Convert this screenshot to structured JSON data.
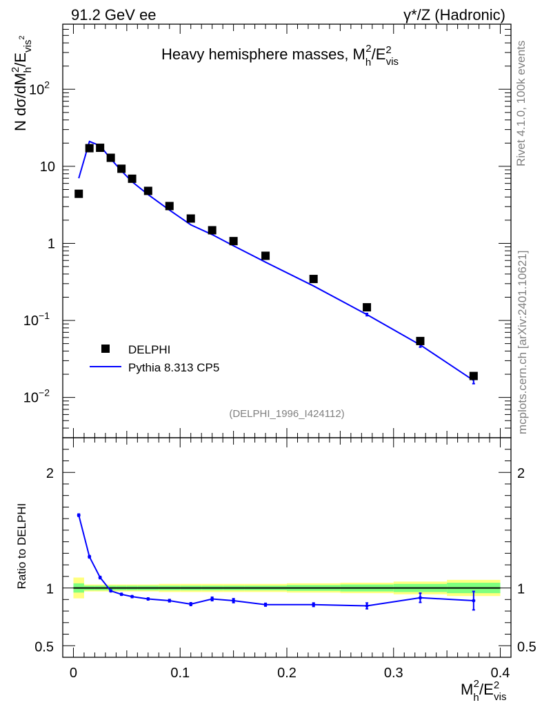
{
  "header": {
    "left": "91.2 GeV ee",
    "right": "γ*/Z (Hadronic)"
  },
  "side_labels": {
    "rivet": "Rivet 4.1.0,  100k events",
    "mcplots": "mcplots.cern.ch [arXiv:2401.10621]"
  },
  "chart_data": {
    "type": "line",
    "title": "Heavy hemisphere masses, M_h^2/E_vis^2",
    "xlabel": "M_h^2/E_vis^2",
    "ylabel": "N  dσ/dM_h^2/E_vis^2",
    "analysis_id": "(DELPHI_1996_I424112)",
    "xlim": [
      -0.01,
      0.41
    ],
    "ylim": [
      0.003,
      700
    ],
    "yscale": "log",
    "x_ticks": [
      "0",
      "0.1",
      "0.2",
      "0.3",
      "0.4"
    ],
    "y_ticks": [
      "10^-2",
      "10^-1",
      "1",
      "10",
      "10^2"
    ],
    "legend": [
      "DELPHI",
      "Pythia 8.313 CP5"
    ],
    "legend_position": "bottom-left",
    "x": [
      0.005,
      0.015,
      0.025,
      0.035,
      0.045,
      0.055,
      0.07,
      0.09,
      0.11,
      0.13,
      0.15,
      0.18,
      0.225,
      0.275,
      0.325,
      0.375
    ],
    "series": [
      {
        "name": "DELPHI",
        "style": "markers",
        "color": "#000000",
        "values": [
          4.4,
          17.2,
          17.4,
          12.9,
          9.3,
          6.9,
          4.8,
          3.05,
          2.1,
          1.48,
          1.07,
          0.69,
          0.345,
          0.148,
          0.054,
          0.019
        ]
      },
      {
        "name": "Pythia 8.313 CP5",
        "style": "line",
        "color": "#0000ff",
        "values": [
          7.0,
          21.0,
          18.5,
          12.5,
          8.75,
          6.3,
          4.3,
          2.7,
          1.74,
          1.3,
          0.93,
          0.57,
          0.28,
          0.119,
          0.048,
          0.0166
        ],
        "errors": [
          0.05,
          0.1,
          0.1,
          0.08,
          0.05,
          0.04,
          0.03,
          0.02,
          0.02,
          0.015,
          0.012,
          0.01,
          0.005,
          0.004,
          0.003,
          0.0015
        ]
      }
    ],
    "ratio": {
      "ylabel": "Ratio to DELPHI",
      "ylim": [
        0.4,
        2.3
      ],
      "y_ticks": [
        "0.5",
        "1",
        "2"
      ],
      "values": [
        1.63,
        1.27,
        1.09,
        0.975,
        0.945,
        0.925,
        0.905,
        0.89,
        0.86,
        0.905,
        0.89,
        0.855,
        0.855,
        0.845,
        0.915,
        0.89
      ],
      "errors": [
        0.01,
        0.01,
        0.01,
        0.008,
        0.008,
        0.008,
        0.008,
        0.01,
        0.012,
        0.015,
        0.017,
        0.012,
        0.015,
        0.025,
        0.04,
        0.08
      ],
      "bins": [
        [
          0.0,
          0.01
        ],
        [
          0.01,
          0.02
        ],
        [
          0.02,
          0.03
        ],
        [
          0.03,
          0.04
        ],
        [
          0.04,
          0.05
        ],
        [
          0.05,
          0.06
        ],
        [
          0.06,
          0.08
        ],
        [
          0.08,
          0.1
        ],
        [
          0.1,
          0.12
        ],
        [
          0.12,
          0.14
        ],
        [
          0.14,
          0.16
        ],
        [
          0.16,
          0.2
        ],
        [
          0.2,
          0.25
        ],
        [
          0.25,
          0.3
        ],
        [
          0.3,
          0.35
        ],
        [
          0.35,
          0.4
        ]
      ],
      "band_stat": [
        0.04,
        0.02,
        0.02,
        0.02,
        0.02,
        0.02,
        0.02,
        0.02,
        0.02,
        0.02,
        0.02,
        0.02,
        0.025,
        0.03,
        0.035,
        0.045
      ],
      "band_total": [
        0.09,
        0.03,
        0.03,
        0.03,
        0.03,
        0.03,
        0.03,
        0.035,
        0.035,
        0.035,
        0.035,
        0.035,
        0.04,
        0.045,
        0.055,
        0.07
      ],
      "band_stat_color": "#7fff7f",
      "band_total_color": "#ffff7f"
    }
  }
}
